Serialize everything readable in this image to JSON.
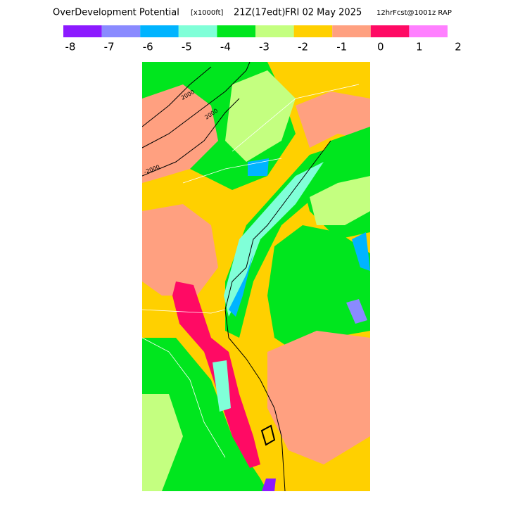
{
  "header": {
    "title": "OverDevelopment Potential",
    "units": "[x1000ft]",
    "valid_time": "21Z(17edt)",
    "date": "FRI 02 May 2025",
    "forecast": "12hrFcst@1001z RAP"
  },
  "colorbar": {
    "colors": [
      "#8c1aff",
      "#8a8aff",
      "#00b4ff",
      "#80ffd8",
      "#00e61e",
      "#c4ff80",
      "#ffd000",
      "#ffa080",
      "#ff0a64",
      "#ff80ff"
    ],
    "ticks": [
      -8,
      -7,
      -6,
      -5,
      -4,
      -3,
      -2,
      -1,
      0,
      1,
      2
    ]
  },
  "map": {
    "contour_labels": [
      "2000",
      "2000",
      "-2000"
    ]
  }
}
